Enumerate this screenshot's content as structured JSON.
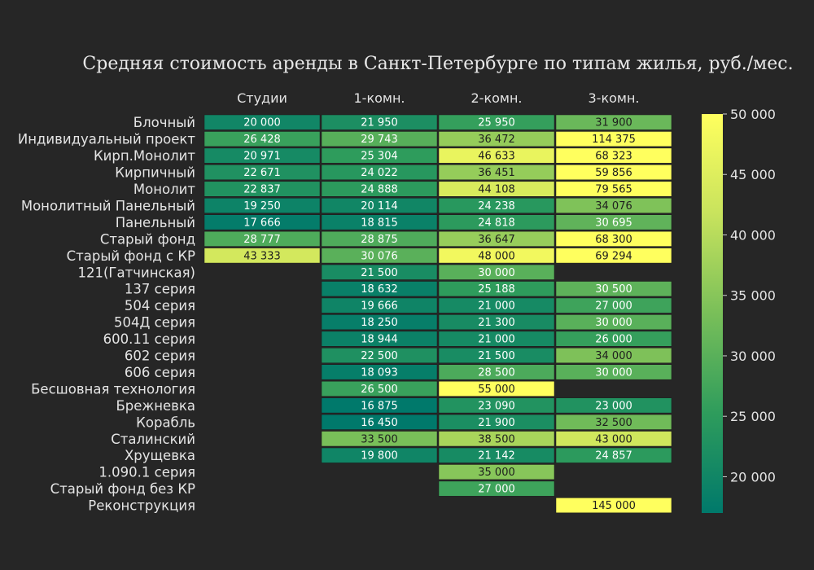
{
  "chart_data": {
    "type": "heatmap",
    "title": "Средняя стоимость аренды в Санкт-Петербурге по типам жилья, руб./мес.",
    "columns": [
      "Студии",
      "1-комн.",
      "2-комн.",
      "3-комн."
    ],
    "rows": [
      {
        "label": "Блочный",
        "values": [
          20000,
          21950,
          25950,
          31900
        ],
        "texts": [
          "20 000",
          "21 950",
          "25 950",
          "31 900"
        ]
      },
      {
        "label": "Индивидуальный проект",
        "values": [
          26428,
          29743,
          36472,
          114375
        ],
        "texts": [
          "26 428",
          "29 743",
          "36 472",
          "114 375"
        ]
      },
      {
        "label": "Кирп.Монолит",
        "values": [
          20971,
          25304,
          46633,
          68323
        ],
        "texts": [
          "20 971",
          "25 304",
          "46 633",
          "68 323"
        ]
      },
      {
        "label": "Кирпичный",
        "values": [
          22671,
          24022,
          36451,
          59856
        ],
        "texts": [
          "22 671",
          "24 022",
          "36 451",
          "59 856"
        ]
      },
      {
        "label": "Монолит",
        "values": [
          22837,
          24888,
          44108,
          79565
        ],
        "texts": [
          "22 837",
          "24 888",
          "44 108",
          "79 565"
        ]
      },
      {
        "label": "Монолитный Панельный",
        "values": [
          19250,
          20114,
          24238,
          34076
        ],
        "texts": [
          "19 250",
          "20 114",
          "24 238",
          "34 076"
        ]
      },
      {
        "label": "Панельный",
        "values": [
          17666,
          18815,
          24818,
          30695
        ],
        "texts": [
          "17 666",
          "18 815",
          "24 818",
          "30 695"
        ]
      },
      {
        "label": "Старый фонд",
        "values": [
          28777,
          28875,
          36647,
          68300
        ],
        "texts": [
          "28 777",
          "28 875",
          "36 647",
          "68 300"
        ]
      },
      {
        "label": "Старый фонд с КР",
        "values": [
          43333,
          30076,
          48000,
          69294
        ],
        "texts": [
          "43 333",
          "30 076",
          "48 000",
          "69 294"
        ]
      },
      {
        "label": "121(Гатчинская)",
        "values": [
          null,
          21500,
          30000,
          null
        ],
        "texts": [
          "",
          "21 500",
          "30 000",
          ""
        ]
      },
      {
        "label": "137 серия",
        "values": [
          null,
          18632,
          25188,
          30500
        ],
        "texts": [
          "",
          "18 632",
          "25 188",
          "30 500"
        ]
      },
      {
        "label": "504 серия",
        "values": [
          null,
          19666,
          21000,
          27000
        ],
        "texts": [
          "",
          "19 666",
          "21 000",
          "27 000"
        ]
      },
      {
        "label": "504Д серия",
        "values": [
          null,
          18250,
          21300,
          30000
        ],
        "texts": [
          "",
          "18 250",
          "21 300",
          "30 000"
        ]
      },
      {
        "label": "600.11 серия",
        "values": [
          null,
          18944,
          21000,
          26000
        ],
        "texts": [
          "",
          "18 944",
          "21 000",
          "26 000"
        ]
      },
      {
        "label": "602 серия",
        "values": [
          null,
          22500,
          21500,
          34000
        ],
        "texts": [
          "",
          "22 500",
          "21 500",
          "34 000"
        ]
      },
      {
        "label": "606 серия",
        "values": [
          null,
          18093,
          28500,
          30000
        ],
        "texts": [
          "",
          "18 093",
          "28 500",
          "30 000"
        ]
      },
      {
        "label": "Бесшовная технология",
        "values": [
          null,
          26500,
          55000,
          null
        ],
        "texts": [
          "",
          "26 500",
          "55 000",
          ""
        ]
      },
      {
        "label": "Брежневка",
        "values": [
          null,
          16875,
          23090,
          23000
        ],
        "texts": [
          "",
          "16 875",
          "23 090",
          "23 000"
        ]
      },
      {
        "label": "Корабль",
        "values": [
          null,
          16450,
          21900,
          32500
        ],
        "texts": [
          "",
          "16 450",
          "21 900",
          "32 500"
        ]
      },
      {
        "label": "Сталинский",
        "values": [
          null,
          33500,
          38500,
          43000
        ],
        "texts": [
          "",
          "33 500",
          "38 500",
          "43 000"
        ]
      },
      {
        "label": "Хрущевка",
        "values": [
          null,
          19800,
          21142,
          24857
        ],
        "texts": [
          "",
          "19 800",
          "21 142",
          "24 857"
        ]
      },
      {
        "label": "1.090.1 серия",
        "values": [
          null,
          null,
          35000,
          null
        ],
        "texts": [
          "",
          "",
          "35 000",
          ""
        ]
      },
      {
        "label": "Старый фонд без КР",
        "values": [
          null,
          null,
          27000,
          null
        ],
        "texts": [
          "",
          "",
          "27 000",
          ""
        ]
      },
      {
        "label": "Реконструкция",
        "values": [
          null,
          null,
          null,
          145000
        ],
        "texts": [
          "",
          "",
          "",
          "145 000"
        ]
      }
    ],
    "colorscale": {
      "range": [
        17000,
        50000
      ],
      "stops": [
        "#00796b",
        "#2e9c5c",
        "#79bf59",
        "#c8e35d",
        "#ffff5e"
      ],
      "ticks": [
        20000,
        25000,
        30000,
        35000,
        40000,
        45000,
        50000
      ],
      "tick_labels": [
        "20 000",
        "25 000",
        "30 000",
        "35 000",
        "40 000",
        "45 000",
        "50 000"
      ]
    },
    "grid": false,
    "colors": {
      "background": "#262626",
      "cell_border": "#1a1a1a"
    }
  }
}
